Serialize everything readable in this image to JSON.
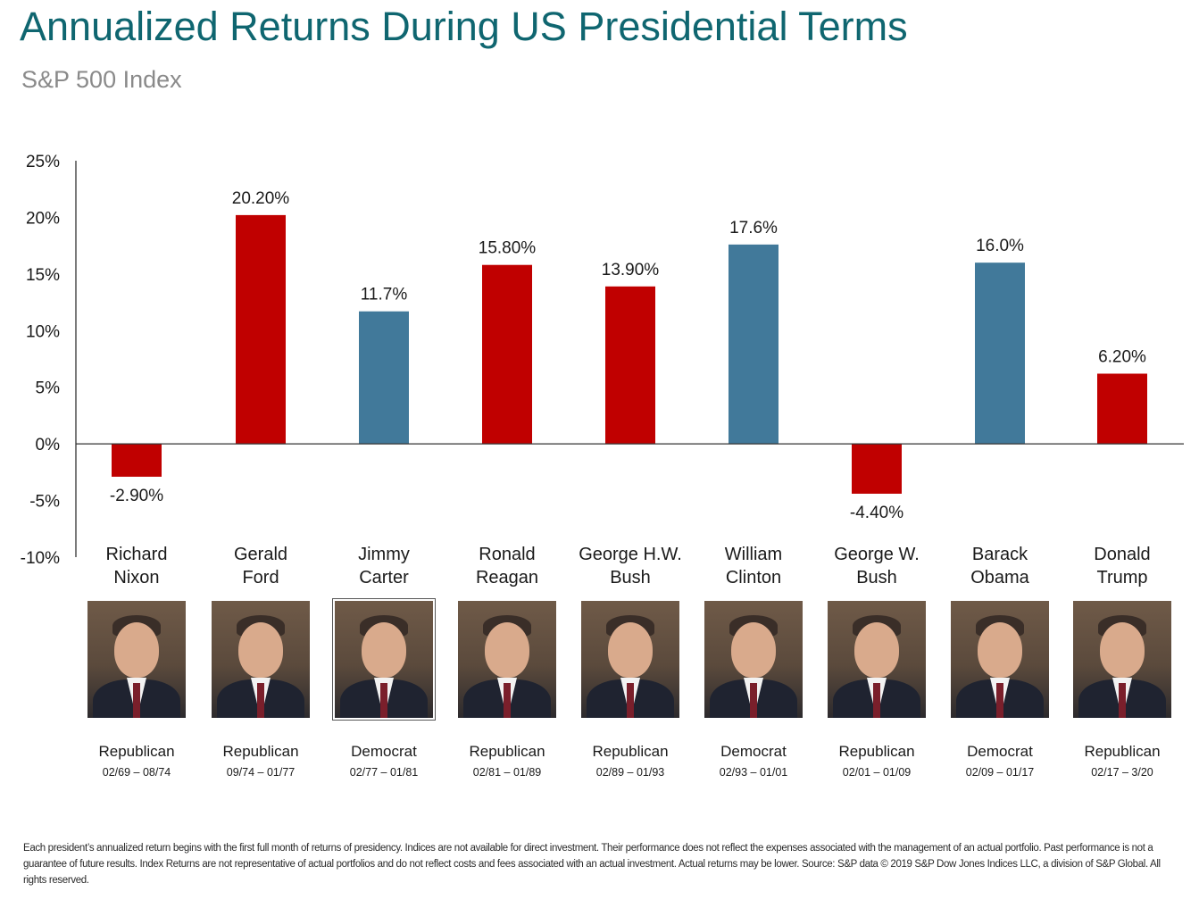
{
  "title": "Annualized Returns During US Presidential Terms",
  "subtitle": "S&P 500 Index",
  "colors": {
    "title": "#0f6670",
    "republican": "#c00000",
    "democrat": "#41799a"
  },
  "chart_data": {
    "type": "bar",
    "categories": [
      "Richard Nixon",
      "Gerald Ford",
      "Jimmy Carter",
      "Ronald Reagan",
      "George H.W. Bush",
      "William Clinton",
      "George W. Bush",
      "Barack Obama",
      "Donald Trump"
    ],
    "values": [
      -2.9,
      20.2,
      11.7,
      15.8,
      13.9,
      17.6,
      -4.4,
      16.0,
      6.2
    ],
    "data_labels": [
      "-2.90%",
      "20.20%",
      "11.7%",
      "15.80%",
      "13.90%",
      "17.6%",
      "-4.40%",
      "16.0%",
      "6.20%"
    ],
    "parties": [
      "Republican",
      "Republican",
      "Democrat",
      "Republican",
      "Republican",
      "Democrat",
      "Republican",
      "Democrat",
      "Republican"
    ],
    "ylim": [
      -10,
      25
    ],
    "yticks": [
      25,
      20,
      15,
      10,
      5,
      0,
      -5,
      -10
    ],
    "ytick_labels": [
      "25%",
      "20%",
      "15%",
      "10%",
      "5%",
      "0%",
      "-5%",
      "-10%"
    ],
    "grid": false,
    "title": "Annualized Returns During US Presidential Terms",
    "subtitle": "S&P 500 Index",
    "xlabel": "",
    "ylabel": ""
  },
  "presidents": [
    {
      "name": "Richard\nNixon",
      "party": "Republican",
      "term": "02/69 – 08/74"
    },
    {
      "name": "Gerald\nFord",
      "party": "Republican",
      "term": "09/74 – 01/77"
    },
    {
      "name": "Jimmy\nCarter",
      "party": "Democrat",
      "term": "02/77 – 01/81"
    },
    {
      "name": "Ronald\nReagan",
      "party": "Republican",
      "term": "02/81 – 01/89"
    },
    {
      "name": "George H.W.\nBush",
      "party": "Republican",
      "term": "02/89 – 01/93"
    },
    {
      "name": "William\nClinton",
      "party": "Democrat",
      "term": "02/93 – 01/01"
    },
    {
      "name": "George W.\nBush",
      "party": "Republican",
      "term": "02/01 – 01/09"
    },
    {
      "name": "Barack\nObama",
      "party": "Democrat",
      "term": "02/09 – 01/17"
    },
    {
      "name": "Donald\nTrump",
      "party": "Republican",
      "term": "02/17 – 3/20"
    }
  ],
  "footnote": "Each president’s annualized return begins with the first full month of returns of presidency. Indices are not available for direct investment. Their performance does not reflect the expenses associated with the management of an actual portfolio. Past performance is not a guarantee of future results. Index Returns are not representative of actual portfolios and do not reflect costs and fees associated with an actual investment. Actual returns may be lower. Source: S&P data © 2019 S&P Dow Jones Indices LLC, a division of S&P Global. All rights reserved."
}
